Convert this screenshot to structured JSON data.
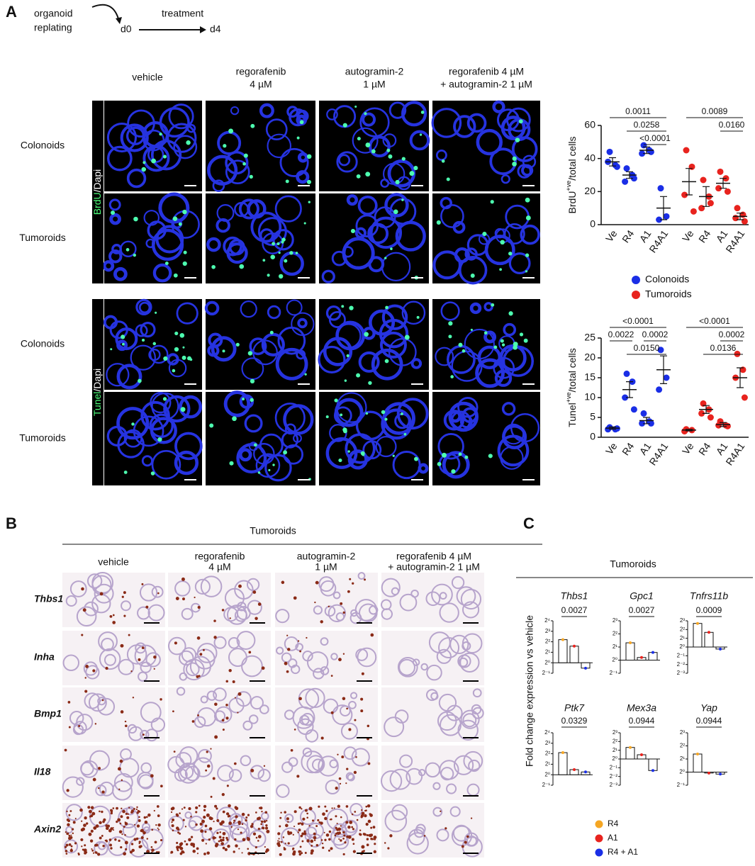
{
  "panel_labels": [
    "A",
    "B",
    "C"
  ],
  "schematic": {
    "left": [
      "organoid",
      "replating"
    ],
    "start": "d0",
    "label": "treatment",
    "end": "d4"
  },
  "panel_a": {
    "columns": [
      [
        "vehicle"
      ],
      [
        "regorafenib",
        "4 µM"
      ],
      [
        "autogramin-2",
        "1 µM"
      ],
      [
        "regorafenib 4 µM",
        "+ autogramin-2 1 µM"
      ]
    ],
    "rows": [
      "Colonoids",
      "Tumoroids",
      "Colonoids",
      "Tumoroids"
    ],
    "stains": [
      [
        "BrdU",
        "/Dapi"
      ],
      [
        "Tunel",
        "/Dapi"
      ]
    ]
  },
  "panel_b": {
    "header": "Tumoroids",
    "columns": [
      [
        "vehicle"
      ],
      [
        "regorafenib",
        "4 µM"
      ],
      [
        "autogramin-2",
        "1 µM"
      ],
      [
        "regorafenib 4 µM",
        "+ autogramin-2 1 µM"
      ]
    ],
    "genes": [
      "Thbs1",
      "Inha",
      "Bmp1",
      "Il18",
      "Axin2"
    ]
  },
  "panel_c": {
    "header": "Tumoroids",
    "y_label": "Fold change expression vs vehicle",
    "legend": [
      {
        "name": "R4",
        "color": "#f5a623"
      },
      {
        "name": "A1",
        "color": "#e8231e"
      },
      {
        "name": "R4 + A1",
        "color": "#1a2ee6"
      }
    ]
  },
  "chart_data": [
    {
      "type": "scatter",
      "y_label": [
        "BrdU",
        "+ve",
        "/total cells"
      ],
      "categories": [
        "Ve",
        "R4",
        "A1",
        "R4A1",
        "Ve",
        "R4",
        "A1",
        "R4A1"
      ],
      "ylim": [
        0,
        60
      ],
      "yticks": [
        0,
        20,
        40,
        60
      ],
      "series": [
        {
          "name": "Colonoids",
          "color": "#1a2ee6",
          "values": [
            [
              44,
              36,
              38,
              35
            ],
            [
              34,
              30,
              26,
              28
            ],
            [
              48,
              45,
              43,
              44
            ],
            [
              22,
              5,
              3
            ],
            null,
            null,
            null,
            null
          ],
          "means": [
            38,
            30,
            45,
            10,
            null,
            null,
            null,
            null
          ],
          "errors": [
            2.5,
            2,
            2,
            7,
            null,
            null,
            null,
            null
          ]
        },
        {
          "name": "Tumoroids",
          "color": "#e8231e",
          "values": [
            null,
            null,
            null,
            null,
            [
              45,
              35,
              18,
              8
            ],
            [
              27,
              17,
              10,
              13
            ],
            [
              32,
              28,
              22,
              20
            ],
            [
              10,
              6,
              4,
              2
            ]
          ],
          "means": [
            null,
            null,
            null,
            null,
            26,
            17,
            25,
            5
          ],
          "errors": [
            null,
            null,
            null,
            null,
            8,
            6,
            3,
            2
          ]
        }
      ],
      "brackets": [
        {
          "label": "0.0011",
          "from": 0,
          "to": 3
        },
        {
          "label": "0.0258",
          "from": 1,
          "to": 3
        },
        {
          "label": "<0.0001",
          "from": 2,
          "to": 3
        },
        {
          "label": "0.0089",
          "from": 4,
          "to": 7
        },
        {
          "label": "0.0160",
          "from": 6,
          "to": 7
        }
      ]
    },
    {
      "type": "scatter",
      "y_label": [
        "Tunel",
        "+ve",
        "/total cells"
      ],
      "categories": [
        "Ve",
        "R4",
        "A1",
        "R4A1",
        "Ve",
        "R4",
        "A1",
        "R4A1"
      ],
      "ylim": [
        0,
        25
      ],
      "yticks": [
        0,
        5,
        10,
        15,
        20,
        25
      ],
      "series": [
        {
          "name": "Colonoids",
          "color": "#1a2ee6",
          "values": [
            [
              2.5,
              2,
              2,
              2.2
            ],
            [
              16,
              14,
              10,
              7
            ],
            [
              6,
              4,
              3.5,
              3.5
            ],
            [
              22,
              15,
              12
            ],
            null,
            null,
            null,
            null
          ],
          "means": [
            2.3,
            12,
            4.2,
            17,
            null,
            null,
            null,
            null
          ],
          "errors": [
            0.3,
            2,
            0.8,
            3.5,
            null,
            null,
            null,
            null
          ]
        },
        {
          "name": "Tumoroids",
          "color": "#e8231e",
          "values": [
            null,
            null,
            null,
            null,
            [
              2,
              1.8,
              1.5
            ],
            [
              8.5,
              7,
              6,
              5
            ],
            [
              4,
              3,
              3,
              2.8
            ],
            [
              21,
              17,
              15,
              10
            ]
          ],
          "means": [
            null,
            null,
            null,
            null,
            1.8,
            7,
            3.2,
            15
          ],
          "errors": [
            null,
            null,
            null,
            null,
            0.2,
            1,
            0.5,
            2.5
          ]
        }
      ],
      "brackets": [
        {
          "label": "<0.0001",
          "from": 0,
          "to": 3
        },
        {
          "label": "0.0022",
          "from": 0,
          "to": 1
        },
        {
          "label": "0.0002",
          "from": 2,
          "to": 3
        },
        {
          "label": "0.0150",
          "from": 1,
          "to": 3
        },
        {
          "label": "<0.0001",
          "from": 4,
          "to": 7
        },
        {
          "label": "0.0002",
          "from": 6,
          "to": 7
        },
        {
          "label": "0.0136",
          "from": 5,
          "to": 7
        }
      ]
    },
    {
      "type": "bar",
      "title": "Thbs1",
      "bracket": "0.0027",
      "log_base": 2,
      "ylim": [
        0.5,
        16
      ],
      "yticks": [
        {
          "value": 16,
          "label": "2⁴"
        },
        {
          "value": 8,
          "label": "2³"
        },
        {
          "value": 4,
          "label": "2²"
        },
        {
          "value": 2,
          "label": "2¹"
        },
        {
          "value": 1,
          "label": "2⁰"
        },
        {
          "value": 0.5,
          "label": "2⁻¹"
        }
      ],
      "values": [
        4.6,
        3,
        0.7
      ]
    },
    {
      "type": "bar",
      "title": "Gpc1",
      "bracket": "0.0027",
      "log_base": 2,
      "ylim": [
        0.5,
        8
      ],
      "yticks": [
        {
          "value": 8,
          "label": "2³"
        },
        {
          "value": 4,
          "label": "2²"
        },
        {
          "value": 2,
          "label": "2¹"
        },
        {
          "value": 1,
          "label": "2⁰"
        },
        {
          "value": 0.5,
          "label": "2⁻¹"
        }
      ],
      "values": [
        2.5,
        1.15,
        1.5
      ]
    },
    {
      "type": "bar",
      "title": "Tnfrs11b",
      "bracket": "0.0009",
      "log_base": 2,
      "ylim": [
        0.125,
        8
      ],
      "yticks": [
        {
          "value": 8,
          "label": "2³"
        },
        {
          "value": 4,
          "label": "2²"
        },
        {
          "value": 2,
          "label": "2¹"
        },
        {
          "value": 1,
          "label": "2⁰"
        },
        {
          "value": 0.5,
          "label": "2⁻¹"
        },
        {
          "value": 0.25,
          "label": "2⁻²"
        },
        {
          "value": 0.125,
          "label": "2⁻³"
        }
      ],
      "values": [
        6.5,
        3.2,
        0.85
      ]
    },
    {
      "type": "bar",
      "title": "Ptk7",
      "bracket": "0.0329",
      "log_base": 2,
      "ylim": [
        0.5,
        16
      ],
      "yticks": [
        {
          "value": 16,
          "label": "2⁴"
        },
        {
          "value": 8,
          "label": "2³"
        },
        {
          "value": 4,
          "label": "2²"
        },
        {
          "value": 2,
          "label": "2¹"
        },
        {
          "value": 1,
          "label": "2⁰"
        },
        {
          "value": 0.5,
          "label": "2⁻¹"
        }
      ],
      "values": [
        4.3,
        1.4,
        1.2
      ]
    },
    {
      "type": "bar",
      "title": "Mex3a",
      "bracket": "0.0944",
      "log_base": 2,
      "ylim": [
        0.125,
        8
      ],
      "yticks": [
        {
          "value": 8,
          "label": "2³"
        },
        {
          "value": 4,
          "label": "2²"
        },
        {
          "value": 2,
          "label": "2¹"
        },
        {
          "value": 1,
          "label": "2⁰"
        },
        {
          "value": 0.5,
          "label": "2⁻¹"
        },
        {
          "value": 0.25,
          "label": "2⁻²"
        },
        {
          "value": 0.125,
          "label": "2⁻³"
        }
      ],
      "values": [
        2.5,
        1.4,
        0.4
      ]
    },
    {
      "type": "bar",
      "title": "Yap",
      "bracket": "0.0944",
      "log_base": 2,
      "ylim": [
        0.5,
        8
      ],
      "yticks": [
        {
          "value": 8,
          "label": "2³"
        },
        {
          "value": 4,
          "label": "2²"
        },
        {
          "value": 2,
          "label": "2¹"
        },
        {
          "value": 1,
          "label": "2⁰"
        },
        {
          "value": 0.5,
          "label": "2⁻¹"
        }
      ],
      "values": [
        2.6,
        0.95,
        0.9
      ]
    }
  ]
}
